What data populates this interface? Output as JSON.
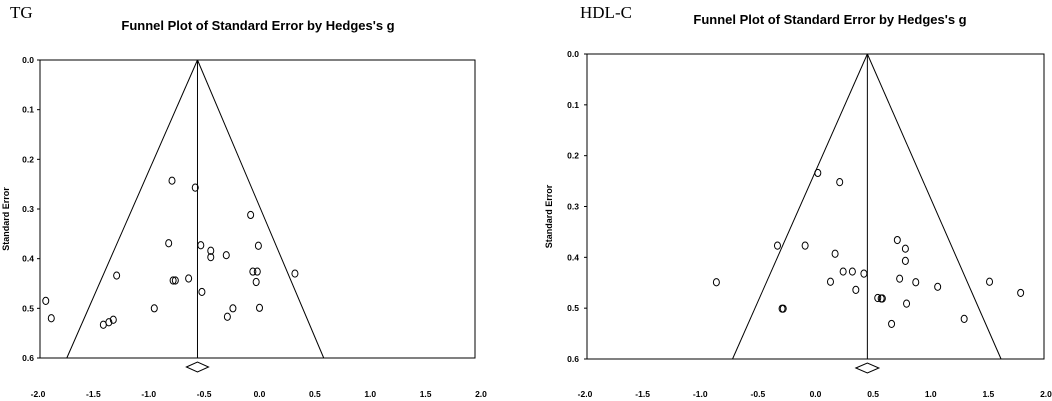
{
  "chart_data": [
    {
      "type": "scatter",
      "panel_label": "TG",
      "title": "Funnel Plot of Standard Error by Hedges's g",
      "xlabel": "",
      "ylabel": "Standard Error",
      "xlim": [
        -2.0,
        2.0
      ],
      "ylim": [
        0.0,
        0.6
      ],
      "y_inverted": true,
      "xticks": [
        "-2.0",
        "-1.5",
        "-1.0",
        "-0.5",
        "0.0",
        "0.5",
        "1.0",
        "1.5",
        "2.0"
      ],
      "yticks": [
        "0.0",
        "0.1",
        "0.2",
        "0.3",
        "0.4",
        "0.5",
        "0.6"
      ],
      "summary_effect": -0.56,
      "summary_ci": [
        -0.66,
        -0.46
      ],
      "funnel_apex": [
        -0.56,
        0.0
      ],
      "funnel_base": [
        -1.74,
        0.58
      ],
      "points": [
        [
          -1.93,
          0.485
        ],
        [
          -1.88,
          0.52
        ],
        [
          -1.41,
          0.533
        ],
        [
          -1.36,
          0.528
        ],
        [
          -1.32,
          0.523
        ],
        [
          -1.29,
          0.434
        ],
        [
          -0.95,
          0.5
        ],
        [
          -0.82,
          0.369
        ],
        [
          -0.79,
          0.243
        ],
        [
          -0.78,
          0.444
        ],
        [
          -0.76,
          0.444
        ],
        [
          -0.64,
          0.44
        ],
        [
          -0.58,
          0.257
        ],
        [
          -0.53,
          0.373
        ],
        [
          -0.52,
          0.467
        ],
        [
          -0.44,
          0.384
        ],
        [
          -0.44,
          0.397
        ],
        [
          -0.3,
          0.393
        ],
        [
          -0.29,
          0.517
        ],
        [
          -0.24,
          0.5
        ],
        [
          -0.08,
          0.312
        ],
        [
          -0.06,
          0.426
        ],
        [
          -0.03,
          0.447
        ],
        [
          -0.02,
          0.426
        ],
        [
          -0.01,
          0.374
        ],
        [
          0.0,
          0.499
        ],
        [
          0.32,
          0.43
        ]
      ]
    },
    {
      "type": "scatter",
      "panel_label": "HDL-C",
      "title": "Funnel Plot of Standard Error by Hedges's g",
      "xlabel": "",
      "ylabel": "Standard Error",
      "xlim": [
        -2.0,
        2.0
      ],
      "ylim": [
        0.0,
        0.6
      ],
      "y_inverted": true,
      "xticks": [
        "-2.0",
        "-1.5",
        "-1.0",
        "-0.5",
        "0.0",
        "0.5",
        "1.0",
        "1.5",
        "2.0"
      ],
      "yticks": [
        "0.0",
        "0.1",
        "0.2",
        "0.3",
        "0.4",
        "0.5",
        "0.6"
      ],
      "summary_effect": 0.45,
      "summary_ci": [
        0.35,
        0.55
      ],
      "funnel_apex": [
        0.45,
        0.0
      ],
      "funnel_base": [
        -0.72,
        1.61
      ],
      "points": [
        [
          -0.86,
          0.449
        ],
        [
          -0.33,
          0.377
        ],
        [
          -0.29,
          0.501
        ],
        [
          -0.28,
          0.501
        ],
        [
          -0.09,
          0.377
        ],
        [
          0.02,
          0.234
        ],
        [
          0.13,
          0.448
        ],
        [
          0.17,
          0.393
        ],
        [
          0.21,
          0.252
        ],
        [
          0.24,
          0.428
        ],
        [
          0.32,
          0.428
        ],
        [
          0.35,
          0.464
        ],
        [
          0.42,
          0.432
        ],
        [
          0.54,
          0.48
        ],
        [
          0.57,
          0.481
        ],
        [
          0.58,
          0.481
        ],
        [
          0.66,
          0.531
        ],
        [
          0.71,
          0.366
        ],
        [
          0.73,
          0.442
        ],
        [
          0.78,
          0.383
        ],
        [
          0.78,
          0.407
        ],
        [
          0.79,
          0.491
        ],
        [
          0.87,
          0.449
        ],
        [
          1.06,
          0.458
        ],
        [
          1.29,
          0.521
        ],
        [
          1.51,
          0.448
        ],
        [
          1.78,
          0.47
        ]
      ]
    }
  ]
}
